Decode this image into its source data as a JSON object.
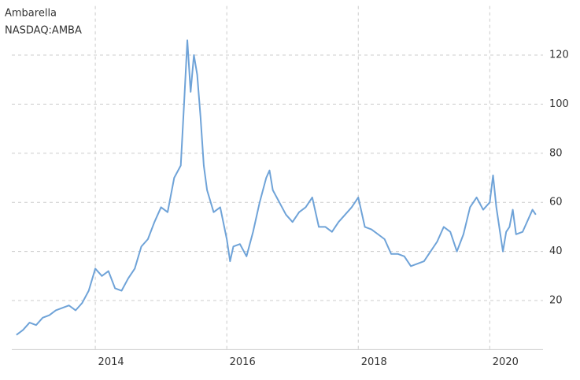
{
  "chart_data": {
    "type": "line",
    "title": "Ambarella",
    "subtitle": "NASDAQ:AMBA",
    "x": [
      2012.8,
      2012.9,
      2013.0,
      2013.1,
      2013.2,
      2013.3,
      2013.4,
      2013.5,
      2013.6,
      2013.7,
      2013.8,
      2013.9,
      2014.0,
      2014.1,
      2014.2,
      2014.3,
      2014.4,
      2014.5,
      2014.6,
      2014.7,
      2014.8,
      2014.9,
      2015.0,
      2015.1,
      2015.2,
      2015.3,
      2015.35,
      2015.4,
      2015.45,
      2015.5,
      2015.55,
      2015.6,
      2015.65,
      2015.7,
      2015.8,
      2015.9,
      2016.0,
      2016.05,
      2016.1,
      2016.2,
      2016.3,
      2016.4,
      2016.5,
      2016.6,
      2016.65,
      2016.7,
      2016.8,
      2016.9,
      2017.0,
      2017.1,
      2017.2,
      2017.3,
      2017.4,
      2017.5,
      2017.6,
      2017.7,
      2017.8,
      2017.9,
      2018.0,
      2018.1,
      2018.2,
      2018.3,
      2018.4,
      2018.5,
      2018.6,
      2018.7,
      2018.8,
      2018.9,
      2019.0,
      2019.1,
      2019.2,
      2019.3,
      2019.4,
      2019.5,
      2019.6,
      2019.7,
      2019.8,
      2019.9,
      2020.0,
      2020.05,
      2020.1,
      2020.2,
      2020.25,
      2020.3,
      2020.35,
      2020.4,
      2020.5,
      2020.6,
      2020.65,
      2020.7
    ],
    "series": [
      {
        "name": "AMBA",
        "color": "#6fa3d8",
        "values": [
          6,
          8,
          11,
          10,
          13,
          14,
          16,
          17,
          18,
          16,
          19,
          24,
          33,
          30,
          32,
          25,
          24,
          29,
          33,
          42,
          45,
          52,
          58,
          56,
          70,
          75,
          100,
          126,
          105,
          120,
          112,
          95,
          75,
          65,
          56,
          58,
          45,
          36,
          42,
          43,
          38,
          48,
          60,
          70,
          73,
          65,
          60,
          55,
          52,
          56,
          58,
          62,
          50,
          50,
          48,
          52,
          55,
          58,
          62,
          50,
          49,
          47,
          45,
          39,
          39,
          38,
          34,
          35,
          36,
          40,
          44,
          50,
          48,
          40,
          47,
          58,
          62,
          57,
          60,
          71,
          58,
          40,
          48,
          50,
          57,
          47,
          48,
          54,
          57,
          55
        ]
      }
    ],
    "xlim": [
      2012.73,
      2020.81
    ],
    "ylim": [
      0,
      140
    ],
    "xticks": [
      2014,
      2016,
      2018,
      2020
    ],
    "yticks": [
      20,
      40,
      60,
      80,
      100,
      120
    ],
    "grid": true
  }
}
